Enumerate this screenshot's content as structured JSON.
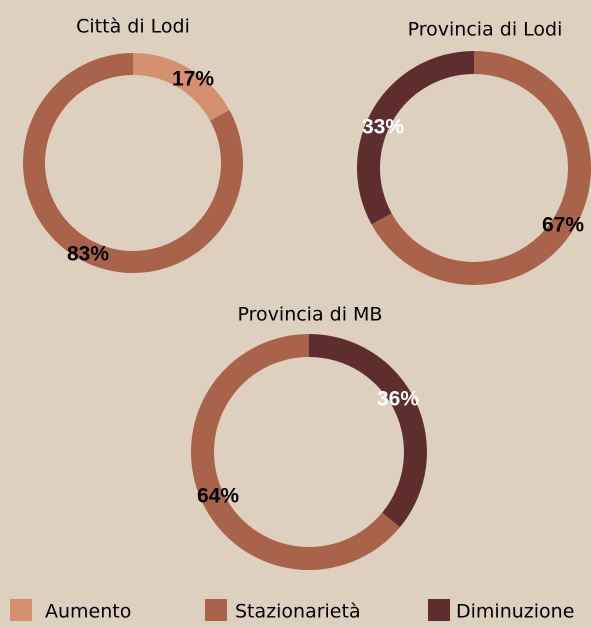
{
  "chart_data": [
    {
      "type": "pie",
      "title": "Città di Lodi",
      "categories": [
        "Aumento",
        "Stazionarietà",
        "Diminuzione"
      ],
      "values": [
        17,
        83,
        0
      ],
      "value_labels": [
        "17%",
        "83%",
        null
      ],
      "colors": [
        "#d4906f",
        "#a9634b",
        "#5e2e2e"
      ],
      "clockwise": true
    },
    {
      "type": "pie",
      "title": "Provincia di Lodi",
      "categories": [
        "Aumento",
        "Stazionarietà",
        "Diminuzione"
      ],
      "values": [
        0,
        67,
        33
      ],
      "value_labels": [
        null,
        "67%",
        "33%"
      ],
      "colors": [
        "#d4906f",
        "#a9634b",
        "#5e2e2e"
      ],
      "clockwise": true
    },
    {
      "type": "pie",
      "title": "Provincia di MB",
      "categories": [
        "Aumento",
        "Stazionarietà",
        "Diminuzione"
      ],
      "values": [
        0,
        64,
        36
      ],
      "value_labels": [
        null,
        "64%",
        "36%"
      ],
      "colors": [
        "#d4906f",
        "#a9634b",
        "#5e2e2e"
      ],
      "clockwise": false
    }
  ]
}
